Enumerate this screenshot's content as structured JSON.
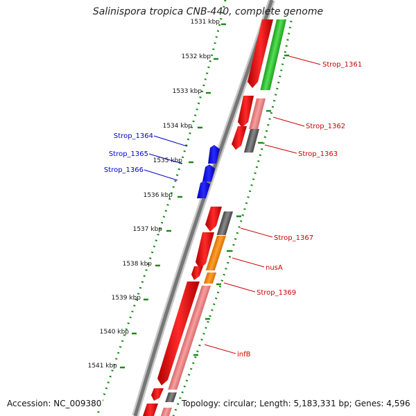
{
  "title": "Salinispora tropica CNB-440, complete genome",
  "accession": "Accession: NC_009380",
  "topology": "Topology: circular; Length: 5,183,331 bp; Genes: 4,596",
  "ticks": [
    "1531 kbp",
    "1532 kbp",
    "1533 kbp",
    "1534 kbp",
    "1535 kbp",
    "1536 kbp",
    "1537 kbp",
    "1538 kbp",
    "1539 kbp",
    "1540 kbp",
    "1541 kbp"
  ],
  "genes_right": [
    "Strop_1361",
    "Strop_1362",
    "Strop_1363",
    "Strop_1367",
    "nusA",
    "Strop_1369",
    "infB"
  ],
  "genes_left": [
    "Strop_1364",
    "Strop_1365",
    "Strop_1366"
  ],
  "colors": {
    "forward_cds": "#ff0000",
    "reverse_cds": "#0000ff",
    "light_red": "#f28b8b",
    "gray": "#666666",
    "green": "#33cc33",
    "orange": "#ff8c00",
    "tick_green": "#1a8a1a",
    "label_red": "#cc0000",
    "label_blue": "#0000cc"
  }
}
